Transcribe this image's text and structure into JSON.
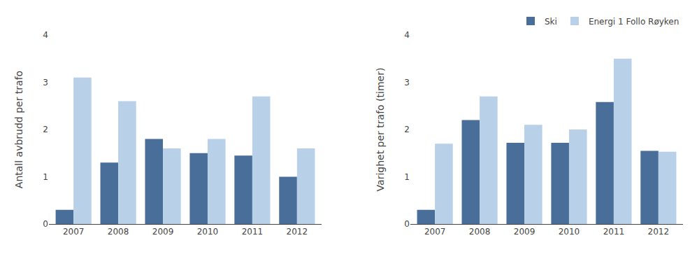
{
  "chart_data": [
    {
      "type": "bar",
      "categories": [
        "2007",
        "2008",
        "2009",
        "2010",
        "2011",
        "2012"
      ],
      "series": [
        {
          "name": "Ski",
          "color": "#4A6E9A",
          "values": [
            0.3,
            1.3,
            1.8,
            1.5,
            1.45,
            1.0
          ]
        },
        {
          "name": "Energi 1 Follo Røyken",
          "color": "#B8D0E8",
          "values": [
            3.1,
            2.6,
            1.6,
            1.8,
            2.7,
            1.6
          ]
        }
      ],
      "y_label": "Antall avbrudd per trafo",
      "ylim": [
        0,
        4
      ],
      "yticks": [
        0,
        1,
        2,
        3,
        4
      ],
      "grid": false
    },
    {
      "type": "bar",
      "categories": [
        "2007",
        "2008",
        "2009",
        "2010",
        "2011",
        "2012"
      ],
      "series": [
        {
          "name": "Ski",
          "color": "#4A6E9A",
          "values": [
            0.3,
            2.2,
            1.72,
            1.72,
            2.58,
            1.55
          ]
        },
        {
          "name": "Energi 1 Follo Røyken",
          "color": "#B8D0E8",
          "values": [
            1.7,
            2.7,
            2.1,
            2.0,
            3.5,
            1.53
          ]
        }
      ],
      "y_label": "Varighet per trafo (timer)",
      "ylim": [
        0,
        4
      ],
      "yticks": [
        0,
        1,
        2,
        3,
        4
      ],
      "grid": false,
      "legend": "upper right"
    }
  ]
}
